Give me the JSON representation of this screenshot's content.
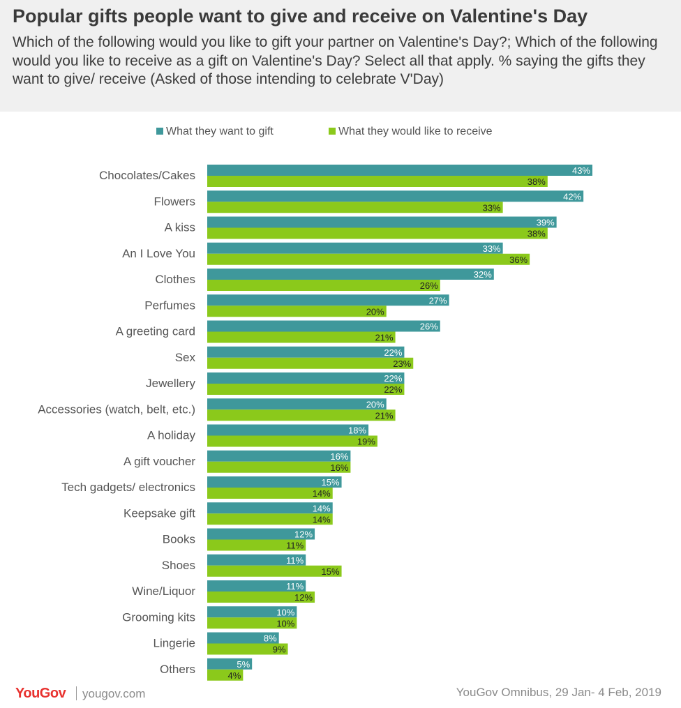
{
  "header": {
    "title": "Popular gifts people want to give and receive on Valentine's Day",
    "subtitle": "Which of the following would you like to gift your partner on Valentine's Day?; Which of the following would you like to receive as a gift on Valentine's Day? Select all that apply. % saying the gifts they want to give/ receive (Asked of those intending to celebrate V'Day)"
  },
  "legend": {
    "gift": "What they want to gift",
    "receive": "What they would like to receive"
  },
  "colors": {
    "gift": "#3f989b",
    "receive": "#8bc91b",
    "gift_label": "#ffffff",
    "receive_label": "#222222"
  },
  "chart_data": {
    "type": "bar",
    "orientation": "horizontal",
    "title": "Popular gifts people want to give and receive on Valentine's Day",
    "categories": [
      "Chocolates/Cakes",
      "Flowers",
      "A kiss",
      "An I Love You",
      "Clothes",
      "Perfumes",
      "A greeting card",
      "Sex",
      "Jewellery",
      "Accessories (watch, belt, etc.)",
      "A holiday",
      "A gift voucher",
      "Tech gadgets/ electronics",
      "Keepsake gift",
      "Books",
      "Shoes",
      "Wine/Liquor",
      "Grooming kits",
      "Lingerie",
      "Others"
    ],
    "series": [
      {
        "name": "What they want to gift",
        "values": [
          43,
          42,
          39,
          33,
          32,
          27,
          26,
          22,
          22,
          20,
          18,
          16,
          15,
          14,
          12,
          11,
          11,
          10,
          8,
          5
        ]
      },
      {
        "name": "What they would like to receive",
        "values": [
          38,
          33,
          38,
          36,
          26,
          20,
          21,
          23,
          22,
          21,
          19,
          16,
          14,
          14,
          11,
          15,
          12,
          10,
          9,
          4
        ]
      }
    ],
    "value_suffix": "%",
    "xlim": [
      0,
      43
    ],
    "grid": false,
    "legend_position": "top"
  },
  "footer": {
    "logo": "YouGov",
    "url": "yougov.com",
    "source": "YouGov Omnibus, 29 Jan- 4 Feb, 2019"
  }
}
